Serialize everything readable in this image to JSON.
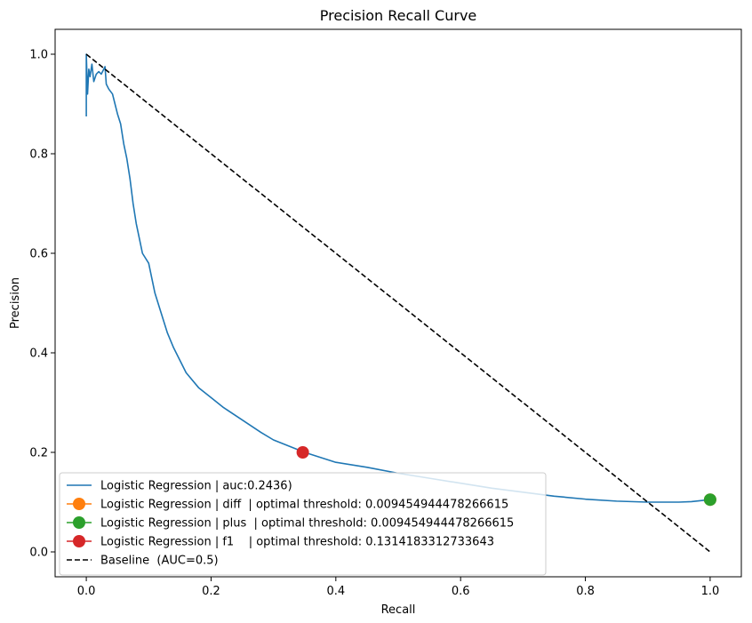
{
  "chart_data": {
    "type": "line",
    "title": "Precision Recall Curve",
    "xlabel": "Recall",
    "ylabel": "Precision",
    "xlim": [
      -0.05,
      1.05
    ],
    "ylim": [
      -0.05,
      1.05
    ],
    "x_ticks": [
      0.0,
      0.2,
      0.4,
      0.6,
      0.8,
      1.0
    ],
    "y_ticks": [
      0.0,
      0.2,
      0.4,
      0.6,
      0.8,
      1.0
    ],
    "x_tick_labels": [
      "0.0",
      "0.2",
      "0.4",
      "0.6",
      "0.8",
      "1.0"
    ],
    "y_tick_labels": [
      "0.0",
      "0.2",
      "0.4",
      "0.6",
      "0.8",
      "1.0"
    ],
    "grid": false,
    "legend_position": "lower-left",
    "series": [
      {
        "name": "Logistic Regression | auc:0.2436)",
        "kind": "line",
        "color": "#1f77b4",
        "points": [
          [
            0.0,
            0.875
          ],
          [
            0.0,
            1.0
          ],
          [
            0.002,
            0.92
          ],
          [
            0.004,
            0.97
          ],
          [
            0.006,
            0.955
          ],
          [
            0.009,
            0.98
          ],
          [
            0.012,
            0.945
          ],
          [
            0.016,
            0.96
          ],
          [
            0.02,
            0.965
          ],
          [
            0.024,
            0.96
          ],
          [
            0.028,
            0.97
          ],
          [
            0.03,
            0.975
          ],
          [
            0.032,
            0.94
          ],
          [
            0.036,
            0.93
          ],
          [
            0.042,
            0.92
          ],
          [
            0.046,
            0.9
          ],
          [
            0.05,
            0.88
          ],
          [
            0.055,
            0.86
          ],
          [
            0.06,
            0.82
          ],
          [
            0.065,
            0.79
          ],
          [
            0.07,
            0.75
          ],
          [
            0.075,
            0.7
          ],
          [
            0.08,
            0.66
          ],
          [
            0.085,
            0.63
          ],
          [
            0.09,
            0.6
          ],
          [
            0.1,
            0.58
          ],
          [
            0.11,
            0.52
          ],
          [
            0.12,
            0.48
          ],
          [
            0.13,
            0.44
          ],
          [
            0.14,
            0.41
          ],
          [
            0.15,
            0.385
          ],
          [
            0.16,
            0.36
          ],
          [
            0.18,
            0.33
          ],
          [
            0.2,
            0.31
          ],
          [
            0.22,
            0.29
          ],
          [
            0.25,
            0.265
          ],
          [
            0.28,
            0.24
          ],
          [
            0.3,
            0.225
          ],
          [
            0.35,
            0.2
          ],
          [
            0.4,
            0.18
          ],
          [
            0.45,
            0.17
          ],
          [
            0.5,
            0.158
          ],
          [
            0.55,
            0.148
          ],
          [
            0.6,
            0.138
          ],
          [
            0.65,
            0.128
          ],
          [
            0.7,
            0.12
          ],
          [
            0.75,
            0.112
          ],
          [
            0.8,
            0.106
          ],
          [
            0.85,
            0.102
          ],
          [
            0.9,
            0.1
          ],
          [
            0.95,
            0.1
          ],
          [
            0.97,
            0.101
          ],
          [
            1.0,
            0.105
          ]
        ]
      },
      {
        "name": "Logistic Regression | diff  | optimal threshold: 0.009454944478266615",
        "kind": "marker",
        "color": "#ff7f0e",
        "x": [
          1.0
        ],
        "y": [
          0.105
        ]
      },
      {
        "name": "Logistic Regression | plus  | optimal threshold: 0.009454944478266615",
        "kind": "marker",
        "color": "#2ca02c",
        "x": [
          1.0
        ],
        "y": [
          0.105
        ]
      },
      {
        "name": "Logistic Regression | f1    | optimal threshold: 0.1314183312733643",
        "kind": "marker",
        "color": "#d62728",
        "x": [
          0.347
        ],
        "y": [
          0.2
        ]
      },
      {
        "name": "Baseline  (AUC=0.5)",
        "kind": "dashed",
        "color": "#000000",
        "x": [
          0.0,
          1.0
        ],
        "y": [
          1.0,
          0.0
        ]
      }
    ]
  }
}
